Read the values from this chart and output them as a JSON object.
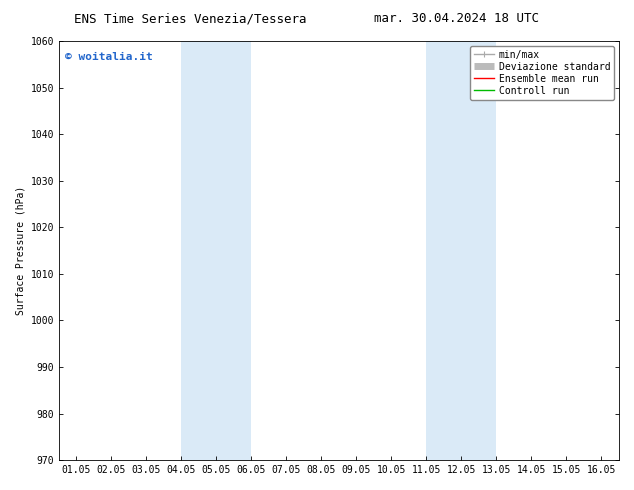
{
  "title_left": "ENS Time Series Venezia/Tessera",
  "title_right": "mar. 30.04.2024 18 UTC",
  "ylabel": "Surface Pressure (hPa)",
  "ylim": [
    970,
    1060
  ],
  "yticks": [
    970,
    980,
    990,
    1000,
    1010,
    1020,
    1030,
    1040,
    1050,
    1060
  ],
  "xtick_labels": [
    "01.05",
    "02.05",
    "03.05",
    "04.05",
    "05.05",
    "06.05",
    "07.05",
    "08.05",
    "09.05",
    "10.05",
    "11.05",
    "12.05",
    "13.05",
    "14.05",
    "15.05",
    "16.05"
  ],
  "shaded_bands": [
    {
      "xstart": 3,
      "xend": 5
    },
    {
      "xstart": 10,
      "xend": 12
    }
  ],
  "band_color": "#daeaf7",
  "background_color": "#ffffff",
  "watermark_text": "© woitalia.it",
  "watermark_color": "#2266cc",
  "legend_items": [
    {
      "label": "min/max",
      "color": "#aaaaaa",
      "lw": 1.0
    },
    {
      "label": "Deviazione standard",
      "color": "#bbbbbb",
      "lw": 5
    },
    {
      "label": "Ensemble mean run",
      "color": "#ff0000",
      "lw": 1.0
    },
    {
      "label": "Controll run",
      "color": "#00bb00",
      "lw": 1.0
    }
  ],
  "title_fontsize": 9,
  "tick_fontsize": 7,
  "ylabel_fontsize": 7,
  "watermark_fontsize": 8,
  "legend_fontsize": 7
}
